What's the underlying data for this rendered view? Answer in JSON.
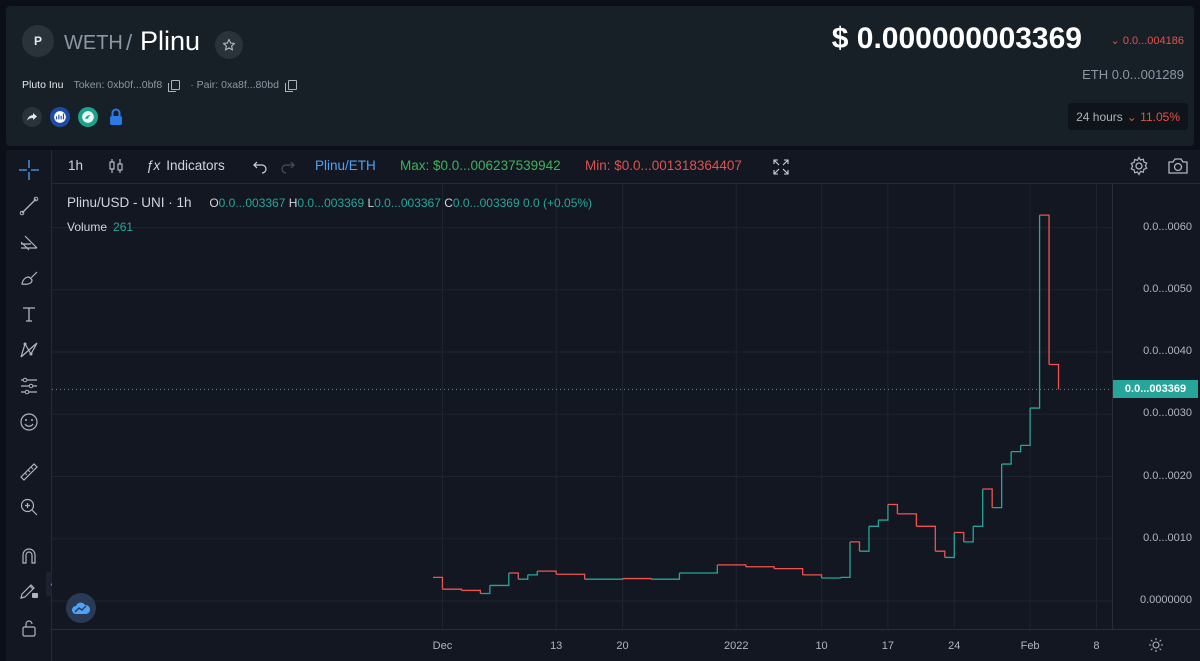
{
  "header": {
    "avatar_letter": "P",
    "quote_symbol": "WETH",
    "separator": "/",
    "base_symbol": "Plinu",
    "token_name": "Pluto Inu",
    "token_label": "Token: 0xb0f...0bf8",
    "pair_label": "· Pair: 0xa8f...80bd",
    "price_usd": "$ 0.000000003369",
    "price_change": "⌄ 0.0...004186",
    "price_eth": "ETH  0.0...001289",
    "timeframe_label": "24 hours",
    "timeframe_change": "⌄ 11.05%"
  },
  "toolbar": {
    "interval": "1h",
    "indicators_label": "Indicators",
    "pair": "Plinu/ETH",
    "max_label": "Max: $0.0...006237539942",
    "min_label": "Min: $0.0...001318364407"
  },
  "legend": {
    "symbol": "Plinu/USD - UNI · 1h",
    "o_label": "O",
    "o": "0.0...003367",
    "h_label": "H",
    "h": "0.0...003369",
    "l_label": "L",
    "l": "0.0...003367",
    "c_label": "C",
    "c": "0.0...003369",
    "change": "0.0 (+0.05%)",
    "volume_label": "Volume",
    "volume": "261"
  },
  "price_axis": {
    "labels": [
      "0.0...0060",
      "0.0...0050",
      "0.0...0040",
      "0.0...0030",
      "0.0...0020",
      "0.0...0010",
      "0.0000000"
    ],
    "current": "0.0...003369"
  },
  "time_axis": {
    "labels": [
      "Dec",
      "13",
      "20",
      "2022",
      "10",
      "17",
      "24",
      "Feb",
      "8"
    ]
  },
  "colors": {
    "up": "#26a69a",
    "down": "#ef5350",
    "panel": "#172027",
    "chart_bg": "#131722"
  },
  "chart_data": {
    "type": "line",
    "title": "Plinu/USD - UNI · 1h",
    "xlabel": "",
    "ylabel": "",
    "ylim": [
      -0.00045,
      0.0067
    ],
    "y_unit_note": "",
    "x": [
      "Nov 30",
      "Dec 1",
      "Dec 3",
      "Dec 5",
      "Dec 6",
      "Dec 8",
      "Dec 9",
      "Dec 10",
      "Dec 11",
      "Dec 13",
      "Dec 16",
      "Dec 20",
      "Dec 23",
      "Dec 26",
      "Dec 30",
      "Jan 2",
      "Jan 5",
      "Jan 8",
      "Jan 10",
      "Jan 12",
      "Jan 13",
      "Jan 14",
      "Jan 15",
      "Jan 16",
      "Jan 17",
      "Jan 18",
      "Jan 20",
      "Jan 22",
      "Jan 23",
      "Jan 24",
      "Jan 25",
      "Jan 26",
      "Jan 27",
      "Jan 28",
      "Jan 29",
      "Jan 30",
      "Jan 31",
      "Feb 1",
      "Feb 2",
      "Feb 3",
      "Feb 4"
    ],
    "values": [
      0.00038,
      0.00019,
      0.00017,
      0.00012,
      0.00025,
      0.00045,
      0.00035,
      0.00042,
      0.00048,
      0.00043,
      0.00035,
      0.00036,
      0.00035,
      0.00045,
      0.00058,
      0.00055,
      0.00052,
      0.00042,
      0.00037,
      0.00038,
      0.00095,
      0.0008,
      0.0012,
      0.0013,
      0.00155,
      0.0014,
      0.0012,
      0.0008,
      0.0007,
      0.0011,
      0.00095,
      0.0012,
      0.0018,
      0.0015,
      0.0022,
      0.0024,
      0.0025,
      0.0031,
      0.0062,
      0.0038,
      0.0034
    ],
    "volume_max_note": ""
  }
}
